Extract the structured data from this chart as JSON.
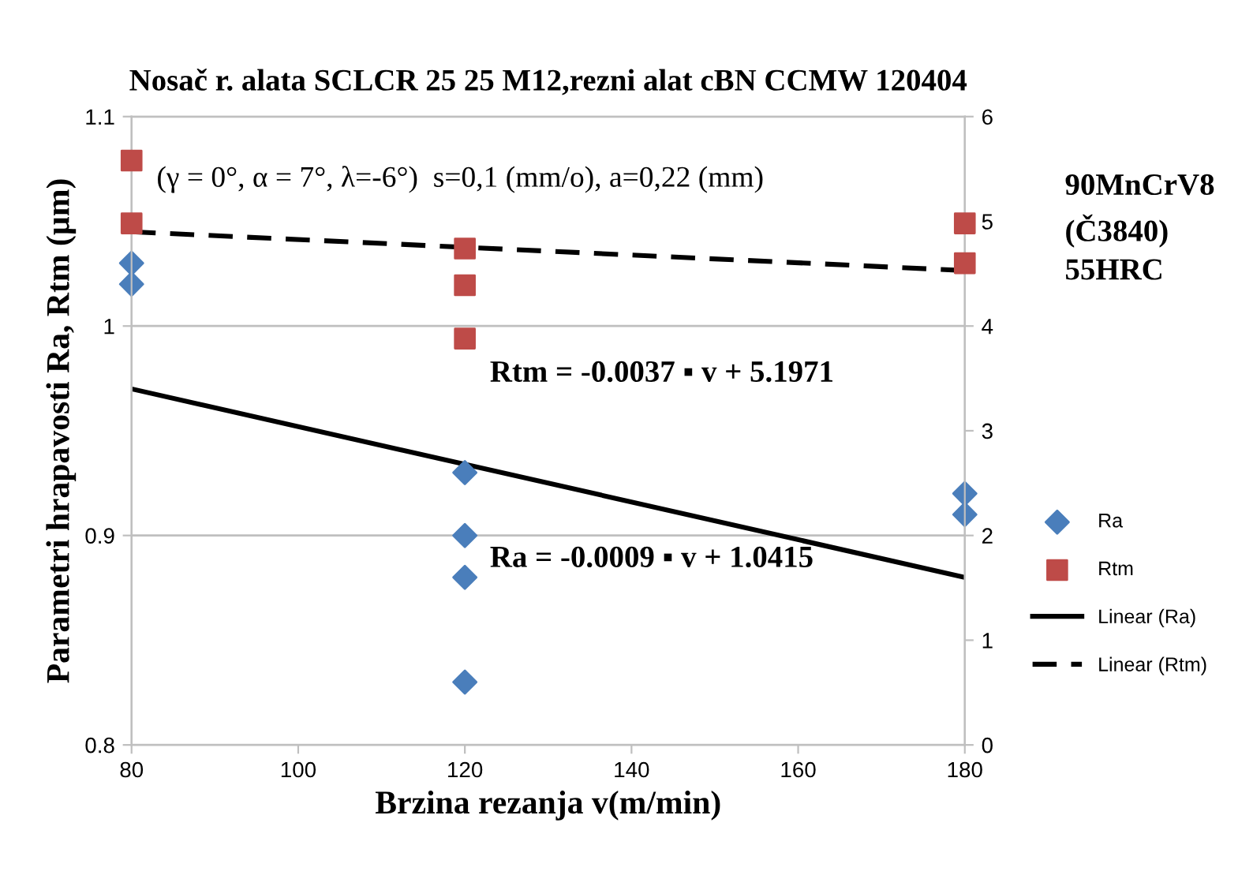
{
  "chart_data": {
    "type": "scatter",
    "title": "Nosač r. alata SCLCR 25 25 M12,rezni alat cBN CCMW 120404",
    "xlabel": "Brzina rezanja v(m/min)",
    "ylabel": "Parametri hrapavosti Ra, Rtm (µm)",
    "annotations": [
      "(γ = 0°, α = 7°, λ=-6°)  s=0,1 (mm/o), a=0,22 (mm)",
      "Rtm = -0.0037 ▪ v + 5.1971",
      "Ra = -0.0009 ▪ v + 1.0415",
      "90MnCrV8\n(Č3840)\n55HRC"
    ],
    "xlim": [
      80,
      180
    ],
    "xticks": [
      80,
      100,
      120,
      140,
      160,
      180
    ],
    "ylim": [
      0.8,
      1.1
    ],
    "yticks": [
      0.8,
      0.9,
      {
        "value": 1.0,
        "label": "1"
      },
      1.1
    ],
    "y2lim": [
      0,
      6
    ],
    "y2ticks": [
      0,
      1,
      2,
      3,
      4,
      5,
      6
    ],
    "grid": "y",
    "legend": "right",
    "series": [
      {
        "name": "Ra",
        "marker": "diamond",
        "color": "#4a7ebb",
        "x": [
          80,
          80,
          120,
          120,
          120,
          120,
          180,
          180
        ],
        "values": [
          1.03,
          1.02,
          0.93,
          0.9,
          0.88,
          0.83,
          0.92,
          0.91
        ]
      },
      {
        "name": "Rtm",
        "marker": "square",
        "color": "#be4b48",
        "axis": "y2",
        "x": [
          80,
          80,
          120,
          120,
          120,
          180,
          180
        ],
        "values": [
          5.58,
          4.98,
          4.74,
          4.39,
          3.88,
          4.98,
          4.6
        ]
      },
      {
        "name": "Linear (Ra)",
        "type": "line",
        "line_style": "solid",
        "color": "#000000",
        "x": [
          80,
          180
        ],
        "values": [
          0.97,
          0.88
        ]
      },
      {
        "name": "Linear (Rtm)",
        "type": "line",
        "line_style": "dashed",
        "color": "#000000",
        "axis": "y2",
        "x": [
          80,
          180
        ],
        "values": [
          4.9,
          4.53
        ]
      }
    ]
  }
}
